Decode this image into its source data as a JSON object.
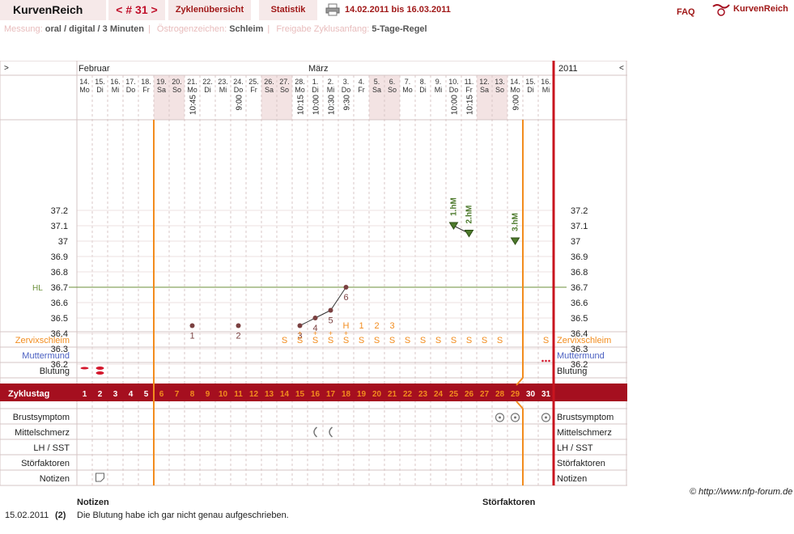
{
  "header": {
    "brand": "KurvenReich",
    "cycle_nav": "< # 31 >",
    "tab_overview": "Zyklenübersicht",
    "tab_stats": "Statistik",
    "date_range": "14.02.2011 bis 16.03.2011",
    "faq": "FAQ",
    "logo_text": "KurvenReich"
  },
  "settings": {
    "measure_label": "Messung:",
    "measure_value": "oral / digital / 3 Minuten",
    "estrogen_label": "Östrogenzeichen:",
    "estrogen_value": "Schleim",
    "release_label": "Freigabe Zyklusanfang:",
    "release_value": "5-Tage-Regel"
  },
  "chart": {
    "nav_left": ">",
    "nav_right": "<",
    "month_feb": "Februar",
    "month_mar": "März",
    "year": "2011",
    "days": [
      {
        "d": "14.",
        "w": "Mo",
        "t": "",
        "shade": false
      },
      {
        "d": "15.",
        "w": "Di",
        "t": "",
        "shade": false
      },
      {
        "d": "16.",
        "w": "Mi",
        "t": "",
        "shade": false
      },
      {
        "d": "17.",
        "w": "Do",
        "t": "",
        "shade": false
      },
      {
        "d": "18.",
        "w": "Fr",
        "t": "",
        "shade": false
      },
      {
        "d": "19.",
        "w": "Sa",
        "t": "",
        "shade": true
      },
      {
        "d": "20.",
        "w": "So",
        "t": "",
        "shade": true
      },
      {
        "d": "21.",
        "w": "Mo",
        "t": "10:45",
        "shade": false
      },
      {
        "d": "22.",
        "w": "Di",
        "t": "",
        "shade": false
      },
      {
        "d": "23.",
        "w": "Mi",
        "t": "",
        "shade": false
      },
      {
        "d": "24.",
        "w": "Do",
        "t": "9:00",
        "shade": false
      },
      {
        "d": "25.",
        "w": "Fr",
        "t": "",
        "shade": false
      },
      {
        "d": "26.",
        "w": "Sa",
        "t": "",
        "shade": true
      },
      {
        "d": "27.",
        "w": "So",
        "t": "",
        "shade": true
      },
      {
        "d": "28.",
        "w": "Mo",
        "t": "10:15",
        "shade": false
      },
      {
        "d": "1.",
        "w": "Di",
        "t": "10:00",
        "shade": false
      },
      {
        "d": "2.",
        "w": "Mi",
        "t": "10:30",
        "shade": false
      },
      {
        "d": "3.",
        "w": "Do",
        "t": "9:30",
        "shade": false
      },
      {
        "d": "4.",
        "w": "Fr",
        "t": "",
        "shade": false
      },
      {
        "d": "5.",
        "w": "Sa",
        "t": "",
        "shade": true
      },
      {
        "d": "6.",
        "w": "So",
        "t": "",
        "shade": true
      },
      {
        "d": "7.",
        "w": "Mo",
        "t": "",
        "shade": false
      },
      {
        "d": "8.",
        "w": "Di",
        "t": "",
        "shade": false
      },
      {
        "d": "9.",
        "w": "Mi",
        "t": "",
        "shade": false
      },
      {
        "d": "10.",
        "w": "Do",
        "t": "10:00",
        "shade": false
      },
      {
        "d": "11.",
        "w": "Fr",
        "t": "10:15",
        "shade": false
      },
      {
        "d": "12.",
        "w": "Sa",
        "t": "",
        "shade": true
      },
      {
        "d": "13.",
        "w": "So",
        "t": "",
        "shade": true
      },
      {
        "d": "14.",
        "w": "Mo",
        "t": "9:00",
        "shade": false
      },
      {
        "d": "15.",
        "w": "Di",
        "t": "",
        "shade": false
      },
      {
        "d": "16.",
        "w": "Mi",
        "t": "",
        "shade": false
      }
    ],
    "temp_axis": [
      "37.2",
      "37.1",
      "37",
      "36.9",
      "36.8",
      "36.7",
      "36.6",
      "36.5",
      "36.4",
      "36.3",
      "36.2"
    ],
    "hl_label": "HL",
    "hl_value": 36.7,
    "temps": [
      {
        "day": 8,
        "v": 36.45,
        "label": "1"
      },
      {
        "day": 11,
        "v": 36.45,
        "label": "2"
      },
      {
        "day": 15,
        "v": 36.45,
        "label": "3"
      },
      {
        "day": 16,
        "v": 36.5,
        "label": "4"
      },
      {
        "day": 17,
        "v": 36.55,
        "label": "5"
      },
      {
        "day": 18,
        "v": 36.7,
        "label": "6"
      }
    ],
    "high_temps": [
      {
        "day": 25,
        "v": 37.1,
        "label": "1.hM"
      },
      {
        "day": 26,
        "v": 37.05,
        "label": "2.hM"
      },
      {
        "day": 29,
        "v": 37.0,
        "label": "3.hM"
      }
    ],
    "peak_labels": [
      {
        "day": 18,
        "label": "H"
      },
      {
        "day": 19,
        "label": "1"
      },
      {
        "day": 20,
        "label": "2"
      },
      {
        "day": 21,
        "label": "3"
      }
    ],
    "mucus": [
      {
        "day": 14,
        "v": "S",
        "plus": false
      },
      {
        "day": 15,
        "v": "S",
        "plus": true
      },
      {
        "day": 16,
        "v": "S",
        "plus": true
      },
      {
        "day": 17,
        "v": "S",
        "plus": true
      },
      {
        "day": 18,
        "v": "S",
        "plus": true
      },
      {
        "day": 19,
        "v": "S",
        "plus": false
      },
      {
        "day": 20,
        "v": "S",
        "plus": false
      },
      {
        "day": 21,
        "v": "S",
        "plus": false
      },
      {
        "day": 22,
        "v": "S",
        "plus": false
      },
      {
        "day": 23,
        "v": "S",
        "plus": false
      },
      {
        "day": 24,
        "v": "S",
        "plus": false
      },
      {
        "day": 25,
        "v": "S",
        "plus": false
      },
      {
        "day": 26,
        "v": "S",
        "plus": false
      },
      {
        "day": 27,
        "v": "S",
        "plus": false
      },
      {
        "day": 28,
        "v": "S",
        "plus": false
      },
      {
        "day": 31,
        "v": "S",
        "plus": false
      }
    ],
    "row_labels": {
      "mucus": "Zervixschleim",
      "cervix": "Muttermund",
      "bleeding": "Blutung",
      "cycle_day": "Zyklustag",
      "breast": "Brustsymptom",
      "midpain": "Mittelschmerz",
      "lh": "LH / SST",
      "disturb": "Störfaktoren",
      "notes": "Notizen"
    },
    "cycle_days": [
      "1",
      "2",
      "3",
      "4",
      "5",
      "6",
      "7",
      "8",
      "9",
      "10",
      "11",
      "12",
      "13",
      "14",
      "15",
      "16",
      "17",
      "18",
      "19",
      "20",
      "21",
      "22",
      "23",
      "24",
      "25",
      "26",
      "27",
      "28",
      "29",
      "30",
      "31"
    ],
    "colors": {
      "accent": "#a50f1f",
      "orange": "#f28c1e",
      "grid": "#d9c7c7",
      "temp": "#7a4040",
      "high": "#4d7a2c",
      "mucus": "#f28c1e",
      "cervix": "#4a5fc1",
      "hl": "#6b8f3a"
    }
  },
  "bottom": {
    "notes_header": "Notizen",
    "disturb_header": "Störfaktoren",
    "copyright": "© http://www.nfp-forum.de",
    "note_date": "15.02.2011",
    "note_day": "(2)",
    "note_text": "Die Blutung habe ich gar nicht genau aufgeschrieben."
  }
}
